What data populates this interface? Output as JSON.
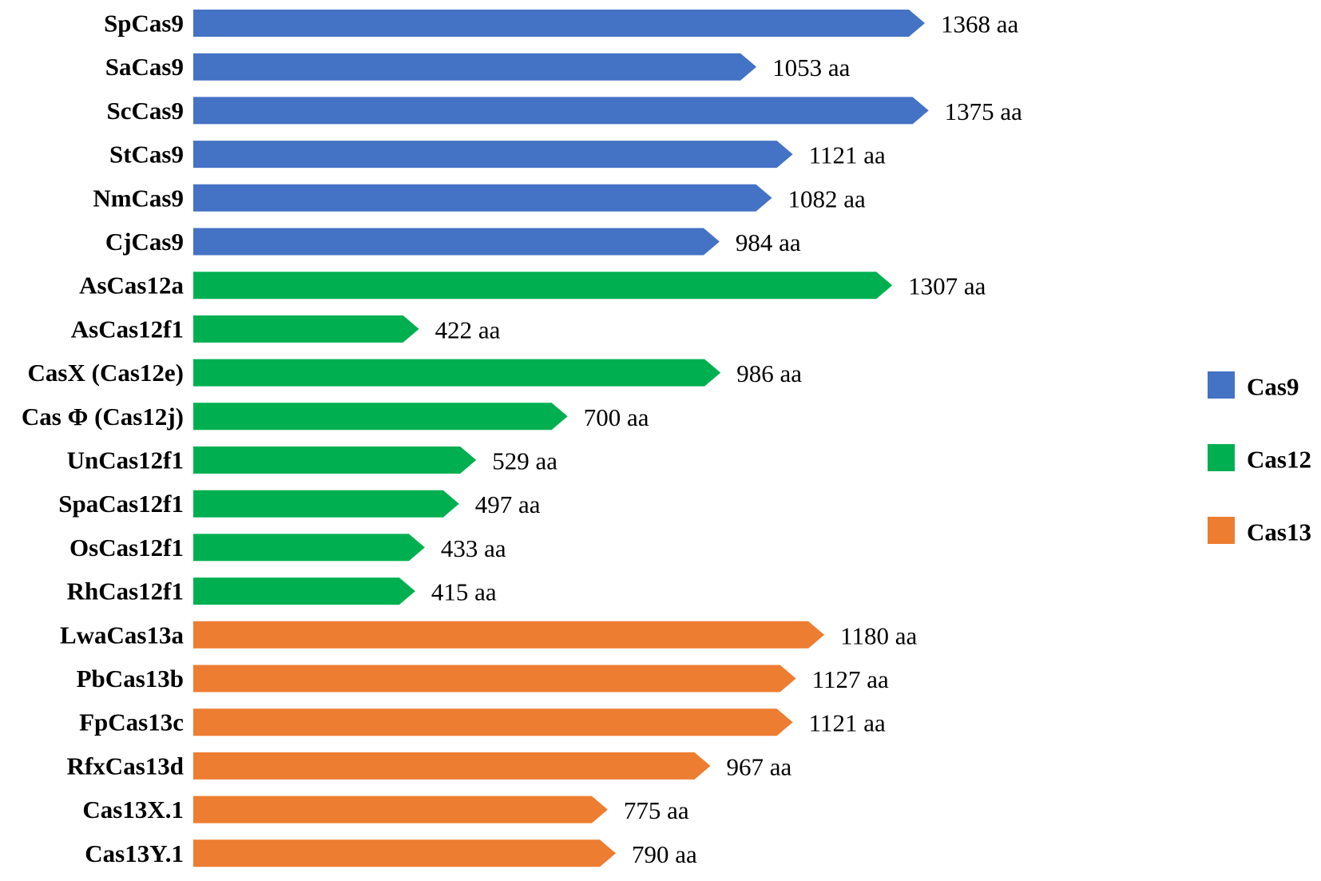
{
  "chart_data": {
    "type": "bar",
    "orientation": "horizontal",
    "bar_shape": "arrow",
    "title": "",
    "xlabel": "",
    "ylabel": "",
    "value_unit": "aa",
    "categories": [
      "SpCas9",
      "SaCas9",
      "ScCas9",
      "StCas9",
      "NmCas9",
      "CjCas9",
      "AsCas12a",
      "AsCas12f1",
      "CasX (Cas12e)",
      "Cas Φ (Cas12j)",
      "UnCas12f1",
      "SpaCas12f1",
      "OsCas12f1",
      "RhCas12f1",
      "LwaCas13a",
      "PbCas13b",
      "FpCas13c",
      "RfxCas13d",
      "Cas13X.1",
      "Cas13Y.1"
    ],
    "values": [
      1368,
      1053,
      1375,
      1121,
      1082,
      984,
      1307,
      422,
      986,
      700,
      529,
      497,
      433,
      415,
      1180,
      1127,
      1121,
      967,
      775,
      790
    ],
    "value_labels": [
      "1368 aa",
      "1053 aa",
      "1375 aa",
      "1121 aa",
      "1082 aa",
      "984 aa",
      "1307 aa",
      "422 aa",
      "986 aa",
      "700 aa",
      "529 aa",
      "497 aa",
      "433 aa",
      "415 aa",
      "1180 aa",
      "1127 aa",
      "1121 aa",
      "967 aa",
      "775 aa",
      "790 aa"
    ],
    "groups": [
      "Cas9",
      "Cas9",
      "Cas9",
      "Cas9",
      "Cas9",
      "Cas9",
      "Cas12",
      "Cas12",
      "Cas12",
      "Cas12",
      "Cas12",
      "Cas12",
      "Cas12",
      "Cas12",
      "Cas13",
      "Cas13",
      "Cas13",
      "Cas13",
      "Cas13",
      "Cas13"
    ],
    "legend": {
      "position": "right",
      "entries": [
        {
          "name": "Cas9",
          "color": "#4472C4"
        },
        {
          "name": "Cas12",
          "color": "#00B050"
        },
        {
          "name": "Cas13",
          "color": "#ED7D31"
        }
      ]
    },
    "grid": false,
    "xlim": [
      0,
      1400
    ]
  }
}
